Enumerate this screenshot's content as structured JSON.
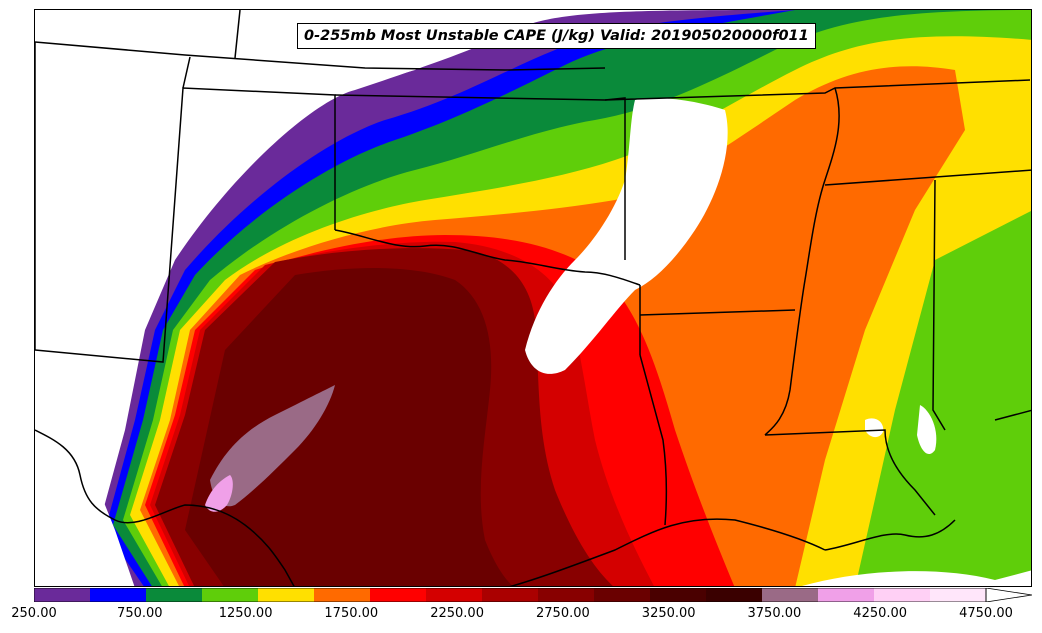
{
  "title": "0-255mb Most Unstable CAPE (J/kg) Valid: 201905020000f011",
  "colorbar": {
    "unit": "J/kg",
    "levels": [
      250,
      500,
      750,
      1000,
      1250,
      1500,
      1750,
      2000,
      2250,
      2500,
      2750,
      3000,
      3250,
      3500,
      3750,
      4000,
      4250,
      4500,
      4750
    ],
    "colors": [
      "#6a2a9a",
      "#0000ff",
      "#0a8a3a",
      "#5fce0a",
      "#ffe000",
      "#ff6a00",
      "#ff0000",
      "#d40000",
      "#aa0000",
      "#880000",
      "#6a0000",
      "#4a0000",
      "#3a0000",
      "#9a6a86",
      "#f0a0e8",
      "#ffd0f5",
      "#ffe6fa",
      "#ffffff"
    ],
    "tick_labels": [
      "250.00",
      "750.00",
      "1250.00",
      "1750.00",
      "2250.00",
      "2750.00",
      "3250.00",
      "3750.00",
      "4250.00",
      "4750.00"
    ],
    "extend": "max"
  },
  "map": {
    "region": "Southern Plains / Lower Mississippi Valley",
    "fill_legend_colors": {
      "very_high": "#4a0000",
      "high": "#880000",
      "mid_high": "#d40000",
      "mid": "#ff6a00",
      "low_mid": "#ffe000",
      "low": "#5fce0a",
      "very_low": "#0a8a3a",
      "minimal": "#0000ff",
      "trace": "#6a2a9a",
      "extreme": "#9a6a86",
      "peak": "#f0a0e8"
    },
    "borders_color": "#000000"
  }
}
